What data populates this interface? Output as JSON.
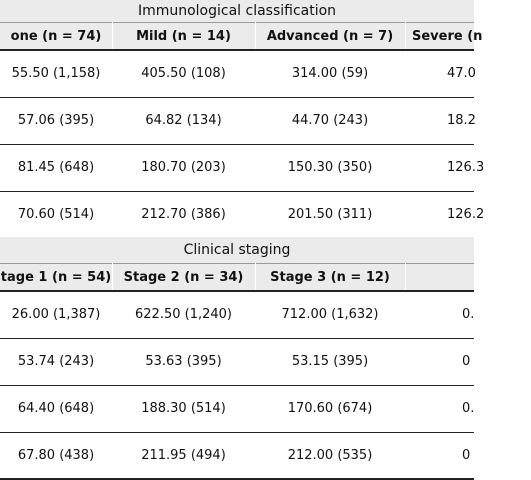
{
  "sections": [
    {
      "title": "Immunological classification",
      "headers": [
        "one (n = 74)",
        "Mild (n = 14)",
        "Advanced (n = 7)",
        "Severe (n"
      ],
      "rows": [
        [
          "55.50 (1,158)",
          "405.50 (108)",
          "314.00 (59)",
          "47.0"
        ],
        [
          "57.06 (395)",
          "64.82 (134)",
          "44.70 (243)",
          "18.2"
        ],
        [
          "81.45 (648)",
          "180.70 (203)",
          "150.30 (350)",
          "126.3"
        ],
        [
          "70.60 (514)",
          "212.70 (386)",
          "201.50 (311)",
          "126.2"
        ]
      ]
    },
    {
      "title": "Clinical staging",
      "headers": [
        "tage 1 (n = 54)",
        "Stage 2 (n = 34)",
        "Stage 3 (n = 12)",
        ""
      ],
      "rows": [
        [
          "26.00 (1,387)",
          "622.50 (1,240)",
          "712.00 (1,632)",
          "0."
        ],
        [
          "53.74 (243)",
          "53.63 (395)",
          "53.15 (395)",
          "0"
        ],
        [
          "64.40 (648)",
          "188.30 (514)",
          "170.60 (674)",
          "0."
        ],
        [
          "67.80 (438)",
          "211.95 (494)",
          "212.00 (535)",
          "0"
        ]
      ]
    }
  ]
}
